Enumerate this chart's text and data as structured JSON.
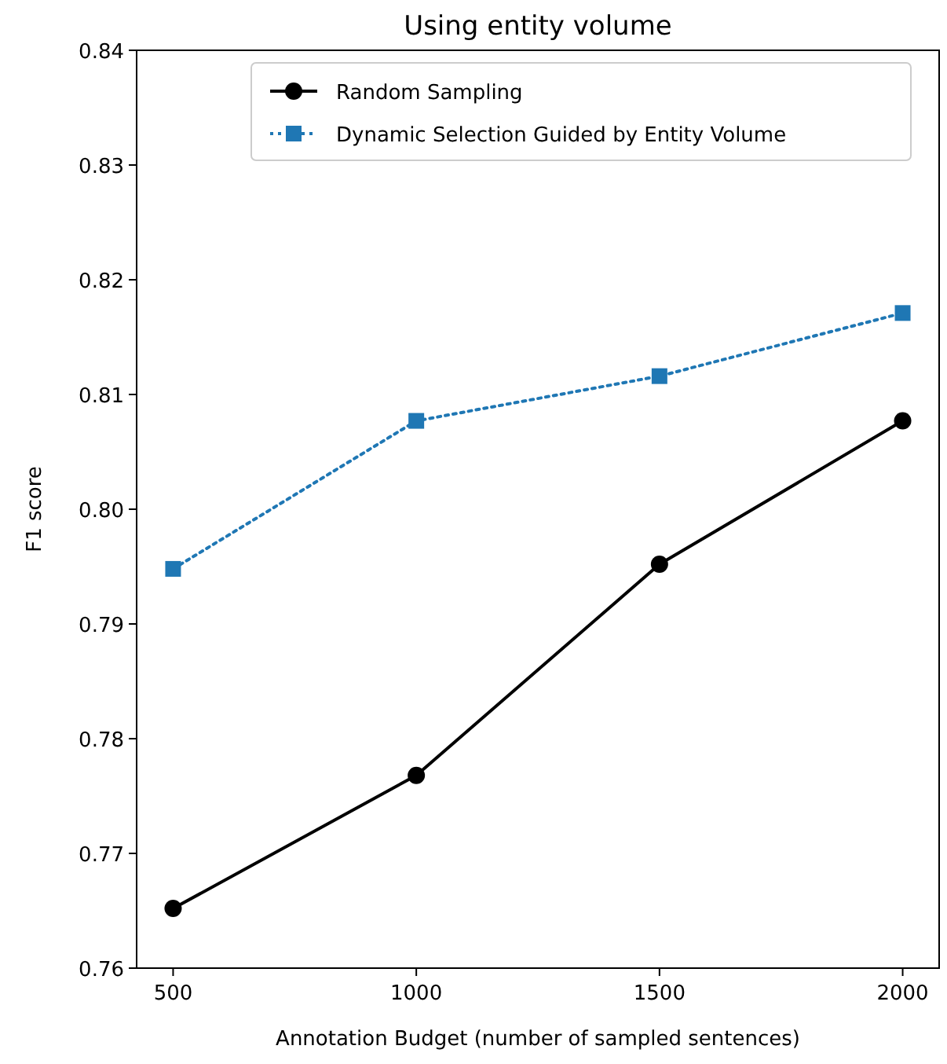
{
  "chart_data": {
    "type": "line",
    "title": "Using entity volume",
    "xlabel": "Annotation Budget (number of sampled sentences)",
    "ylabel": "F1 score",
    "x": [
      500,
      1000,
      1500,
      2000
    ],
    "xlim": [
      425,
      2075
    ],
    "xticks": [
      500,
      1000,
      1500,
      2000
    ],
    "ylim": [
      0.76,
      0.84
    ],
    "yticks": [
      0.76,
      0.77,
      0.78,
      0.79,
      {
        "value": 0.8,
        "label": "0.80"
      },
      0.81,
      0.82,
      0.83,
      0.84
    ],
    "legend": "top",
    "grid": false,
    "series": [
      {
        "name": "Random Sampling",
        "color": "#000000",
        "marker": "circle",
        "line_style": "solid",
        "values": [
          0.7652,
          0.7768,
          0.7952,
          0.8077
        ]
      },
      {
        "name": "Dynamic Selection Guided by Entity Volume",
        "color": "#1f77b4",
        "marker": "square",
        "line_style": "dotted",
        "values": [
          0.7948,
          0.8077,
          0.8116,
          0.8171
        ]
      }
    ]
  }
}
